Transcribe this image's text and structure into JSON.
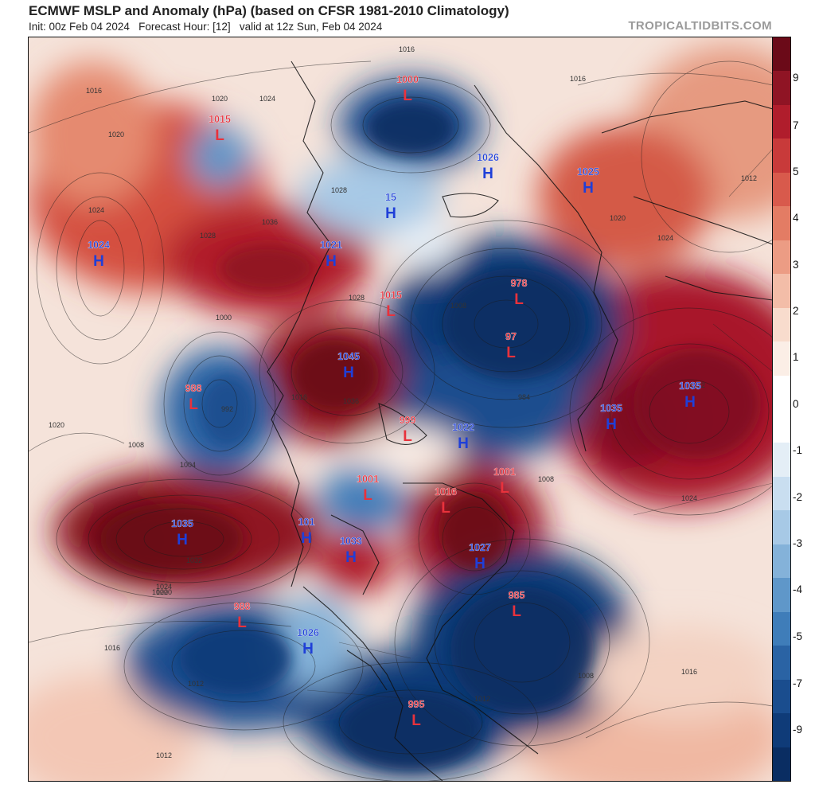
{
  "header": {
    "title": "ECMWF MSLP and Anomaly (hPa) (based on CFSR 1981-2010 Climatology)",
    "subtitle": "Init: 00z Feb 04 2024   Forecast Hour: [12]   valid at 12z Sun, Feb 04 2024",
    "brand": "TROPICALTIDBITS.COM"
  },
  "colorbar": {
    "ticks": [
      "9",
      "7",
      "5",
      "4",
      "3",
      "2",
      "1",
      "0",
      "-1",
      "-2",
      "-3",
      "-4",
      "-5",
      "-7",
      "-9"
    ],
    "colors": [
      "#6b0a18",
      "#8f1424",
      "#b01d2c",
      "#c83a3a",
      "#d85a4c",
      "#e37c64",
      "#ec9c84",
      "#f3bda8",
      "#f8dccd",
      "#fbeee6",
      "#ffffff",
      "#ffffff",
      "#e4eef6",
      "#c9def0",
      "#a7c9e6",
      "#84b2d9",
      "#5f97c9",
      "#3f7db9",
      "#2a63a4",
      "#1a4d8e",
      "#0f3b78",
      "#0a2d62"
    ]
  },
  "centers": [
    {
      "type": "L",
      "value": "1000",
      "color": "#e8323c"
    },
    {
      "type": "L",
      "value": "1015",
      "color": "#e8323c"
    },
    {
      "type": "H",
      "value": "1026",
      "color": "#1f3fd8"
    },
    {
      "type": "H",
      "value": "1025",
      "color": "#1f3fd8"
    },
    {
      "type": "H",
      "value": "1024",
      "color": "#1f3fd8"
    },
    {
      "type": "H",
      "value": "1021",
      "color": "#1f3fd8"
    },
    {
      "type": "H",
      "value": "15",
      "color": "#1f3fd8"
    },
    {
      "type": "L",
      "value": "978",
      "color": "#e8323c"
    },
    {
      "type": "L",
      "value": "1015",
      "color": "#e8323c"
    },
    {
      "type": "L",
      "value": "97",
      "color": "#e8323c"
    },
    {
      "type": "H",
      "value": "1045",
      "color": "#1f3fd8"
    },
    {
      "type": "L",
      "value": "988",
      "color": "#e8323c"
    },
    {
      "type": "H",
      "value": "1035",
      "color": "#1f3fd8"
    },
    {
      "type": "H",
      "value": "1035",
      "color": "#1f3fd8"
    },
    {
      "type": "L",
      "value": "999",
      "color": "#e8323c"
    },
    {
      "type": "H",
      "value": "1022",
      "color": "#1f3fd8"
    },
    {
      "type": "L",
      "value": "1001",
      "color": "#e8323c"
    },
    {
      "type": "L",
      "value": "1016",
      "color": "#e8323c"
    },
    {
      "type": "L",
      "value": "1001",
      "color": "#e8323c"
    },
    {
      "type": "H",
      "value": "1035",
      "color": "#1f3fd8"
    },
    {
      "type": "H",
      "value": "101",
      "color": "#1f3fd8"
    },
    {
      "type": "H",
      "value": "1033",
      "color": "#1f3fd8"
    },
    {
      "type": "H",
      "value": "1027",
      "color": "#1f3fd8"
    },
    {
      "type": "L",
      "value": "985",
      "color": "#e8323c"
    },
    {
      "type": "L",
      "value": "988",
      "color": "#e8323c"
    },
    {
      "type": "H",
      "value": "1026",
      "color": "#1f3fd8"
    },
    {
      "type": "L",
      "value": "995",
      "color": "#e8323c"
    }
  ],
  "isobar_labels": [
    "1016",
    "1016",
    "1016",
    "1016",
    "1016",
    "1016",
    "1020",
    "1020",
    "1020",
    "1020",
    "1020",
    "1020",
    "1024",
    "1024",
    "1024",
    "1024",
    "1024",
    "1028",
    "1028",
    "1028",
    "1012",
    "1012",
    "1012",
    "1012",
    "1008",
    "1008",
    "1008",
    "1008",
    "1004",
    "1000",
    "992",
    "984",
    "1032",
    "1032",
    "1036",
    "1036"
  ],
  "colors": {
    "anomaly_positive_strong": "#8f1424",
    "anomaly_positive_weak": "#ec9c84",
    "anomaly_negative_weak": "#a7c9e6",
    "anomaly_negative_strong": "#0f3b78",
    "low_label": "#e8323c",
    "high_label": "#1f3fd8"
  }
}
